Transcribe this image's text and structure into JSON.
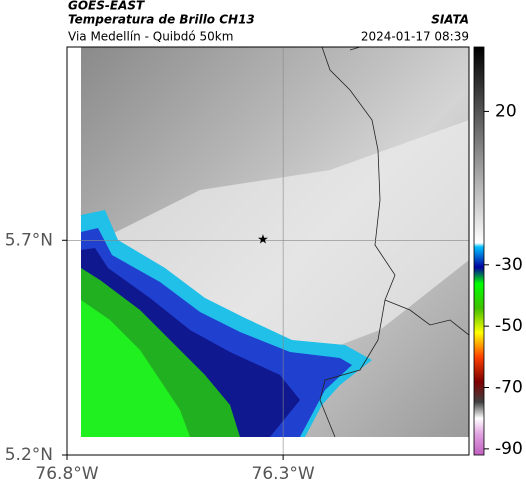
{
  "header": {
    "product": "GOES-EAST",
    "title": "Temperatura de Brillo CH13",
    "subtitle": "Via Medellín - Quibdó 50km",
    "source": "SIATA",
    "datetime": "2024-01-17 08:39"
  },
  "map": {
    "latlim": [
      5.2,
      6.15
    ],
    "lonlim": [
      -76.8,
      -75.87
    ],
    "lat_ticks": [
      {
        "value": 5.7,
        "label": "5.7°N"
      },
      {
        "value": 5.2,
        "label": "5.2°N"
      }
    ],
    "lon_ticks": [
      {
        "value": -76.8,
        "label": "76.8°W"
      },
      {
        "value": -76.3,
        "label": "76.3°W"
      }
    ],
    "grid": true
  },
  "colorbar": {
    "lim": [
      -92,
      41
    ],
    "ticks": [
      20,
      -30,
      -50,
      -70,
      -90
    ]
  }
}
